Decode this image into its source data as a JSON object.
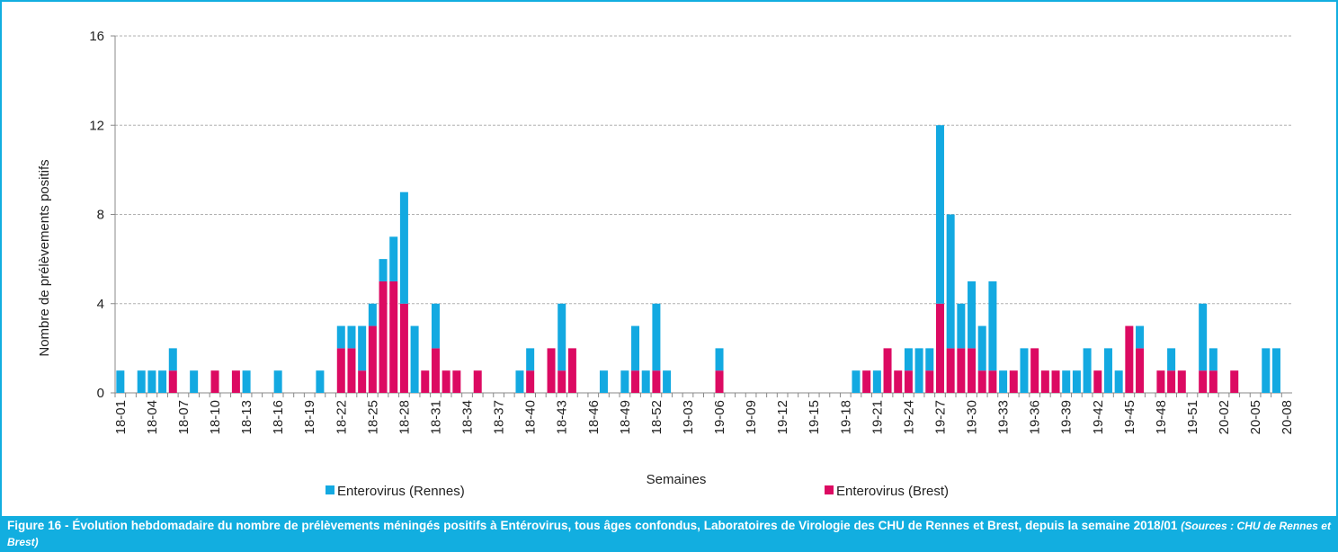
{
  "chart_data": {
    "type": "stacked_bar",
    "y_label": "Nombre de prélèvements positifs",
    "x_label": "Semaines",
    "caption": "Figure 16 - Évolution hebdomadaire du nombre de prélèvements méningés positifs à Entérovirus, tous âges confondus, Laboratoires de Virologie des CHU de Rennes et Brest, depuis la semaine 2018/01",
    "source": "(Sources : CHU de Rennes et Brest)",
    "categories": [
      "18-01",
      null,
      null,
      "18-04",
      null,
      null,
      "18-07",
      null,
      null,
      "18-10",
      null,
      null,
      "18-13",
      null,
      null,
      "18-16",
      null,
      null,
      "18-19",
      null,
      null,
      "18-22",
      null,
      null,
      "18-25",
      null,
      null,
      "18-28",
      null,
      null,
      "18-31",
      null,
      null,
      "18-34",
      null,
      null,
      "18-37",
      null,
      null,
      "18-40",
      null,
      null,
      "18-43",
      null,
      null,
      "18-46",
      null,
      null,
      "18-49",
      null,
      null,
      "18-52",
      null,
      null,
      "19-03",
      null,
      null,
      "19-06",
      null,
      null,
      "19-09",
      null,
      null,
      "19-12",
      null,
      null,
      "19-15",
      null,
      null,
      "19-18",
      null,
      null,
      "19-21",
      null,
      null,
      "19-24",
      null,
      null,
      "19-27",
      null,
      null,
      "19-30",
      null,
      null,
      "19-33",
      null,
      null,
      "19-36",
      null,
      null,
      "19-39",
      null,
      null,
      "19-42",
      null,
      null,
      "19-45",
      null,
      null,
      "19-48",
      null,
      null,
      "19-51",
      null,
      null,
      "20-02",
      null,
      null,
      "20-05",
      null,
      null,
      "20-08"
    ],
    "series": [
      {
        "name": "Enterovirus (Rennes)",
        "color": "#13a9e1",
        "values": [
          1,
          0,
          1,
          1,
          1,
          1,
          0,
          1,
          0,
          0,
          0,
          0,
          1,
          0,
          0,
          1,
          0,
          0,
          0,
          1,
          0,
          1,
          1,
          2,
          1,
          1,
          2,
          5,
          3,
          0,
          2,
          0,
          0,
          0,
          0,
          0,
          0,
          0,
          1,
          1,
          0,
          0,
          3,
          0,
          0,
          0,
          1,
          0,
          1,
          2,
          1,
          3,
          1,
          0,
          0,
          0,
          0,
          1,
          0,
          0,
          0,
          0,
          0,
          0,
          0,
          0,
          0,
          0,
          0,
          0,
          1,
          0,
          1,
          0,
          0,
          1,
          2,
          1,
          8,
          6,
          2,
          3,
          2,
          4,
          1,
          0,
          2,
          0,
          0,
          0,
          1,
          1,
          2,
          0,
          2,
          1,
          0,
          1,
          0,
          0,
          1,
          0,
          0,
          3,
          1,
          0,
          0,
          0,
          0,
          2,
          2,
          0
        ]
      },
      {
        "name": "Enterovirus (Brest)",
        "color": "#dc0a62",
        "values": [
          0,
          0,
          0,
          0,
          0,
          1,
          0,
          0,
          0,
          1,
          0,
          1,
          0,
          0,
          0,
          0,
          0,
          0,
          0,
          0,
          0,
          2,
          2,
          1,
          3,
          5,
          5,
          4,
          0,
          1,
          2,
          1,
          1,
          0,
          1,
          0,
          0,
          0,
          0,
          1,
          0,
          2,
          1,
          2,
          0,
          0,
          0,
          0,
          0,
          1,
          0,
          1,
          0,
          0,
          0,
          0,
          0,
          1,
          0,
          0,
          0,
          0,
          0,
          0,
          0,
          0,
          0,
          0,
          0,
          0,
          0,
          1,
          0,
          2,
          1,
          1,
          0,
          1,
          4,
          2,
          2,
          2,
          1,
          1,
          0,
          1,
          0,
          2,
          1,
          1,
          0,
          0,
          0,
          1,
          0,
          0,
          3,
          2,
          0,
          1,
          1,
          1,
          0,
          1,
          1,
          0,
          1,
          0,
          0,
          0,
          0,
          0
        ]
      }
    ],
    "ylim": [
      0,
      16
    ],
    "yticks": [
      0,
      4,
      8,
      12,
      16
    ],
    "grid": true
  }
}
